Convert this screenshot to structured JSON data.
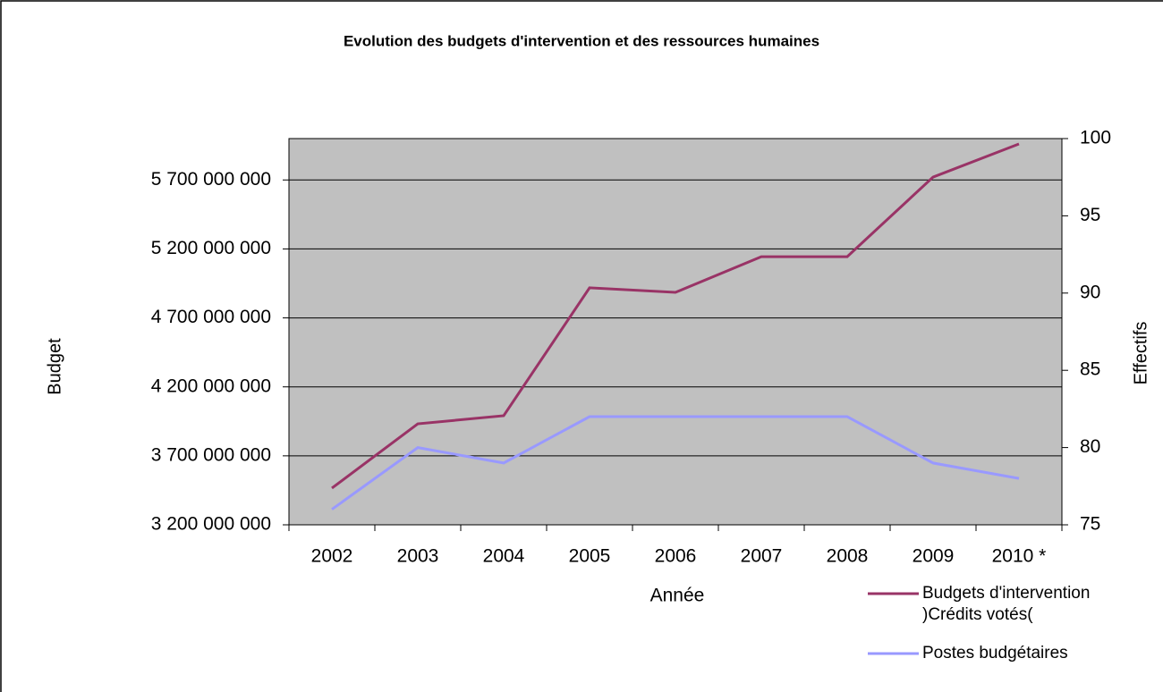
{
  "chart_data": {
    "type": "line",
    "title": "Evolution des budgets d'intervention et des ressources humaines",
    "x_label": "Année",
    "y_label": "Budget",
    "y2_label": "Effectifs",
    "categories": [
      "2002",
      "2003",
      "2004",
      "2005",
      "2006",
      "2007",
      "2008",
      "2009",
      "2010 *"
    ],
    "series": [
      {
        "name": "Budgets d'intervention )Crédits votés(",
        "color": "#993366",
        "values": [
          3466000000,
          3932000000,
          3991000000,
          4918000000,
          4885000000,
          5144000000,
          5144000000,
          5721000000,
          5961000000
        ]
      },
      {
        "name": "Postes budgétaires",
        "color": "#9999ff",
        "axis": "y2",
        "values": [
          76,
          80,
          79,
          82,
          82,
          82,
          82,
          79,
          78
        ]
      }
    ],
    "ylim": [
      3200000000,
      6000000000
    ],
    "yticks": [
      {
        "value": 3200000000,
        "label": "3 200 000 000"
      },
      {
        "value": 3700000000,
        "label": "3 700 000 000"
      },
      {
        "value": 4200000000,
        "label": "4 200 000 000"
      },
      {
        "value": 4700000000,
        "label": "4 700 000 000"
      },
      {
        "value": 5200000000,
        "label": "5 200 000 000"
      },
      {
        "value": 5700000000,
        "label": "5 700 000 000"
      }
    ],
    "y2lim": [
      75,
      100
    ],
    "y2ticks": [
      75,
      80,
      85,
      90,
      95,
      100
    ],
    "grid": true,
    "legend": "bottom-right",
    "plot_background": "#c0c0c0"
  }
}
